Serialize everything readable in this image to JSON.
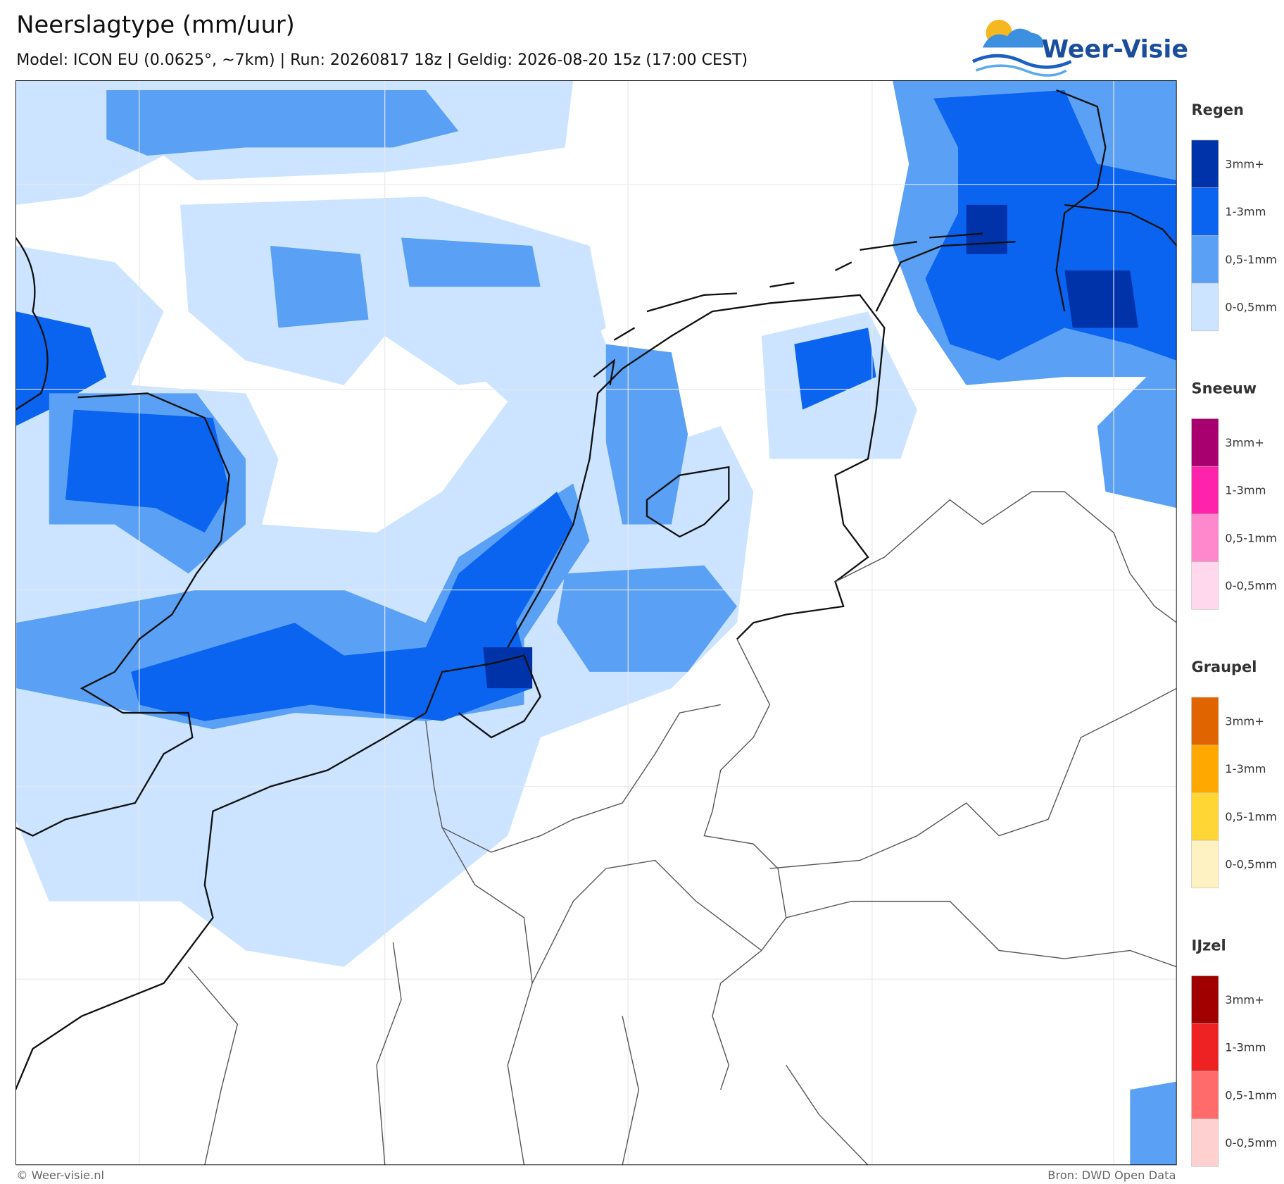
{
  "header": {
    "title": "Neerslagtype (mm/uur)",
    "subtitle": "Model: ICON EU (0.0625°, ~7km)  |  Run: 20260817 18z  |  Geldig: 2026-08-20 15z (17:00 CEST)",
    "logo": "Weer-Visie"
  },
  "legend": [
    {
      "name": "Regen",
      "items": [
        {
          "label": "3mm+",
          "color": "#0033aa"
        },
        {
          "label": "1-3mm",
          "color": "#0a64f0"
        },
        {
          "label": "0,5-1mm",
          "color": "#5aa0f5"
        },
        {
          "label": "0-0,5mm",
          "color": "#cce4ff"
        }
      ]
    },
    {
      "name": "Sneeuw",
      "items": [
        {
          "label": "3mm+",
          "color": "#a8006e"
        },
        {
          "label": "1-3mm",
          "color": "#ff22aa"
        },
        {
          "label": "0,5-1mm",
          "color": "#ff88cc"
        },
        {
          "label": "0-0,5mm",
          "color": "#ffd8ee"
        }
      ]
    },
    {
      "name": "Graupel",
      "items": [
        {
          "label": "3mm+",
          "color": "#e06400"
        },
        {
          "label": "1-3mm",
          "color": "#ffa800"
        },
        {
          "label": "0,5-1mm",
          "color": "#ffd633"
        },
        {
          "label": "0-0,5mm",
          "color": "#fff2c2"
        }
      ]
    },
    {
      "name": "IJzel",
      "items": [
        {
          "label": "3mm+",
          "color": "#a00000"
        },
        {
          "label": "1-3mm",
          "color": "#ee2222"
        },
        {
          "label": "0,5-1mm",
          "color": "#ff6b6b"
        },
        {
          "label": "0-0,5mm",
          "color": "#ffd0d0"
        }
      ]
    }
  ],
  "footer": {
    "left": "© Weer-visie.nl",
    "right": "Bron: DWD Open Data"
  }
}
